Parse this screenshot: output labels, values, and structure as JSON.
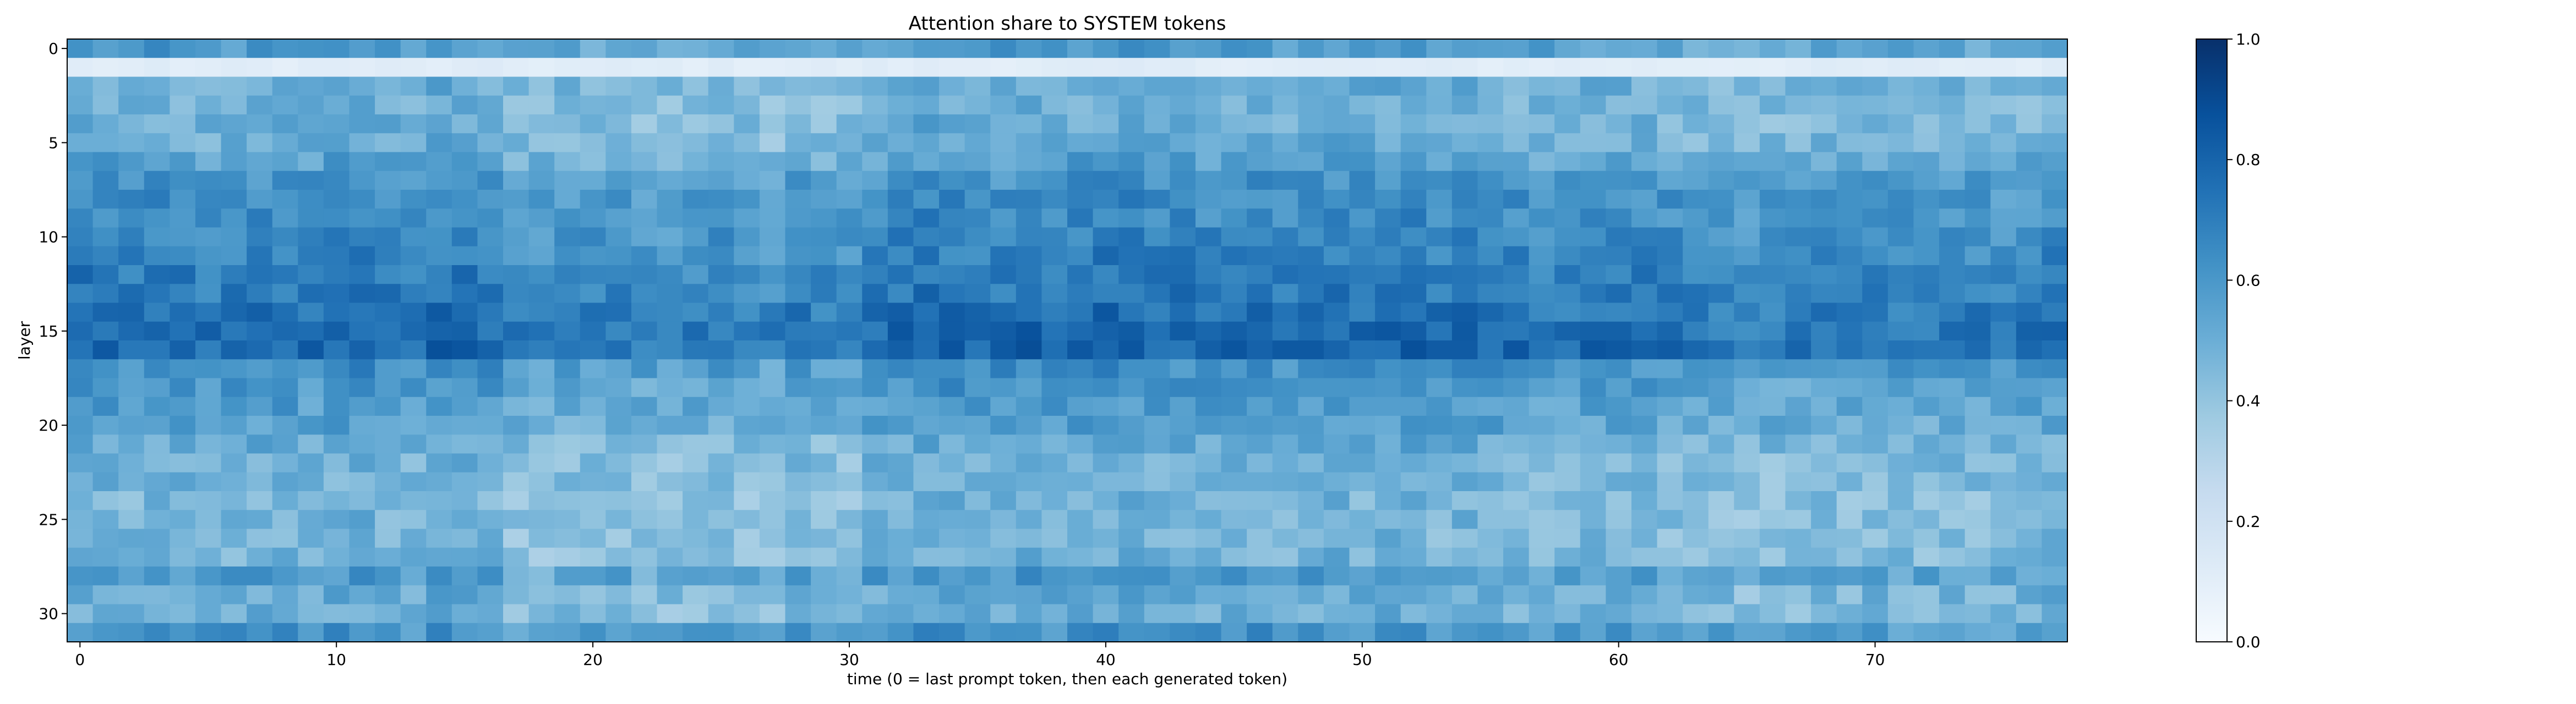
{
  "chart_data": {
    "type": "heatmap",
    "title": "Attention share to SYSTEM tokens",
    "xlabel": "time (0 = last prompt token, then each generated token)",
    "ylabel": "layer",
    "x_range": [
      0,
      77
    ],
    "y_range": [
      0,
      31
    ],
    "xticks": [
      0,
      10,
      20,
      30,
      40,
      50,
      60,
      70
    ],
    "yticks": [
      0,
      5,
      10,
      15,
      20,
      25,
      30
    ],
    "n_timesteps": 78,
    "n_layers": 32,
    "y_inverted": true,
    "colormap": "Blues",
    "colorbar": {
      "min": 0.0,
      "max": 1.0,
      "ticks": [
        0.0,
        0.2,
        0.4,
        0.6,
        0.8,
        1.0
      ]
    },
    "layer_mean_values": [
      0.57,
      0.11,
      0.5,
      0.48,
      0.49,
      0.5,
      0.55,
      0.6,
      0.63,
      0.64,
      0.66,
      0.67,
      0.7,
      0.71,
      0.74,
      0.77,
      0.78,
      0.62,
      0.59,
      0.57,
      0.55,
      0.5,
      0.48,
      0.47,
      0.46,
      0.47,
      0.46,
      0.47,
      0.58,
      0.5,
      0.48,
      0.6
    ],
    "time_offsets": [
      0.03,
      0.02,
      0.0,
      0.02,
      0.01,
      -0.01,
      0.0,
      0.02,
      0.01,
      0.0,
      0.02,
      0.03,
      0.01,
      0.0,
      0.03,
      0.02,
      0.0,
      -0.06,
      -0.07,
      -0.04,
      -0.05,
      -0.03,
      -0.06,
      -0.07,
      -0.05,
      -0.03,
      -0.06,
      -0.08,
      -0.02,
      -0.05,
      -0.06,
      0.0,
      0.02,
      0.04,
      0.03,
      0.02,
      0.01,
      0.03,
      0.02,
      0.02,
      0.04,
      0.03,
      0.01,
      0.02,
      0.0,
      0.01,
      0.02,
      0.0,
      0.01,
      0.03,
      0.01,
      0.02,
      0.03,
      0.0,
      0.02,
      0.01,
      0.0,
      -0.02,
      -0.03,
      0.0,
      -0.01,
      0.0,
      -0.02,
      -0.03,
      -0.05,
      -0.07,
      -0.04,
      -0.05,
      -0.03,
      -0.04,
      -0.02,
      -0.03,
      -0.04,
      -0.02,
      -0.03,
      -0.04,
      -0.02,
      0.0
    ],
    "noise_amplitude": 0.08
  }
}
